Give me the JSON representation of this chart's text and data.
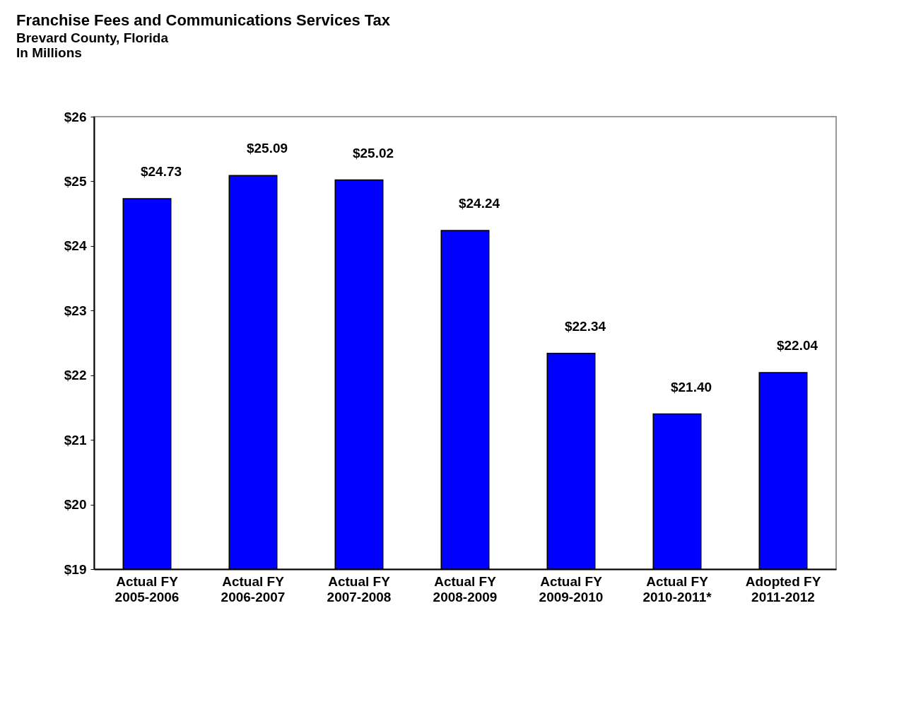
{
  "chart_data": {
    "type": "bar",
    "title": "Franchise Fees and Communications Services Tax",
    "subtitle": "Brevard County, Florida\nIn Millions",
    "categories": [
      "Actual FY\n2005-2006",
      "Actual FY\n2006-2007",
      "Actual FY\n2007-2008",
      "Actual FY\n2008-2009",
      "Actual FY\n2009-2010",
      "Actual FY\n2010-2011*",
      "Adopted FY\n2011-2012"
    ],
    "values": [
      24.73,
      25.09,
      25.02,
      24.24,
      22.34,
      21.4,
      22.04
    ],
    "value_labels": [
      "$24.73",
      "$25.09",
      "$25.02",
      "$24.24",
      "$22.34",
      "$21.40",
      "$22.04"
    ],
    "color": "#0000ff",
    "ylim": [
      19,
      26
    ],
    "yticks": [
      {
        "value": 19,
        "label": "$19"
      },
      {
        "value": 20,
        "label": "$20"
      },
      {
        "value": 21,
        "label": "$21"
      },
      {
        "value": 22,
        "label": "$22"
      },
      {
        "value": 23,
        "label": "$23"
      },
      {
        "value": 24,
        "label": "$24"
      },
      {
        "value": 25,
        "label": "$25"
      },
      {
        "value": 26,
        "label": "$26"
      }
    ],
    "grid": false
  }
}
